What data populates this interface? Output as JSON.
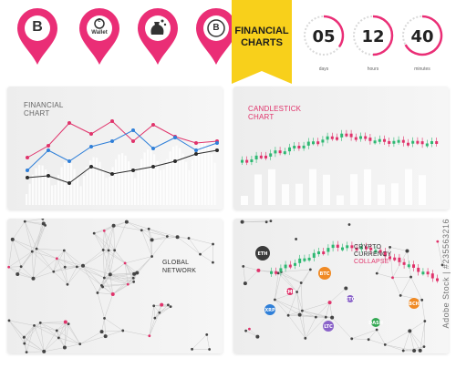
{
  "icons": [
    {
      "name": "bitcoin-pin-icon",
      "symbol": "B",
      "label": "",
      "color": "#ea2e76"
    },
    {
      "name": "wallet-pin-icon",
      "symbol": "e",
      "label": "Wallet",
      "color": "#ea2e76"
    },
    {
      "name": "money-bag-pin-icon",
      "symbol": "",
      "label": "",
      "color": "#ea2e76"
    },
    {
      "name": "bitcoin-coin-pin-icon",
      "symbol": "B",
      "label": "",
      "color": "#ea2e76"
    }
  ],
  "banner": {
    "line1": "FINANCIAL",
    "line2": "CHARTS",
    "color": "#f8d01b"
  },
  "timers": [
    {
      "value": "05",
      "label": "days",
      "fraction": 0.35
    },
    {
      "value": "12",
      "label": "hours",
      "fraction": 0.5
    },
    {
      "value": "40",
      "label": "minutes",
      "fraction": 0.67
    }
  ],
  "panels": {
    "financial_chart": {
      "line1": "FINANCIAL",
      "line2": "CHART",
      "color": "#666666"
    },
    "candlestick_chart": {
      "line1": "CANDLESTICK",
      "line2": "CHART",
      "color": "#e0336b"
    },
    "global_network": {
      "line1": "GLOBAL",
      "line2": "NETWORK",
      "color": "#333333"
    },
    "crypto_currency": {
      "line1": "CRYPTO",
      "line2": "CURRENCY",
      "line3": "COLLAPSE",
      "color1": "#333333",
      "color3": "#e0336b"
    }
  },
  "crypto_bubbles": [
    {
      "label": "ETH",
      "color": "#3b3b3b"
    },
    {
      "label": "BTC",
      "color": "#f08a24"
    },
    {
      "label": "XRP",
      "color": "#2f7fd8"
    },
    {
      "label": "LTC",
      "color": "#8a63c9"
    },
    {
      "label": "XMR",
      "color": "#e0336b"
    },
    {
      "label": "ETC",
      "color": "#8a63c9"
    },
    {
      "label": "DASH",
      "color": "#34a853"
    },
    {
      "label": "BCH",
      "color": "#f08a24"
    }
  ],
  "colors": {
    "pink": "#ea2e76",
    "yellow": "#f8d01b",
    "red_line": "#e0336b",
    "blue_line": "#2f7fd8",
    "dark_line": "#2b2b2b",
    "candle_green": "#2eb872",
    "candle_red": "#e0336b"
  },
  "watermark": "Adobe Stock | #235563216"
}
